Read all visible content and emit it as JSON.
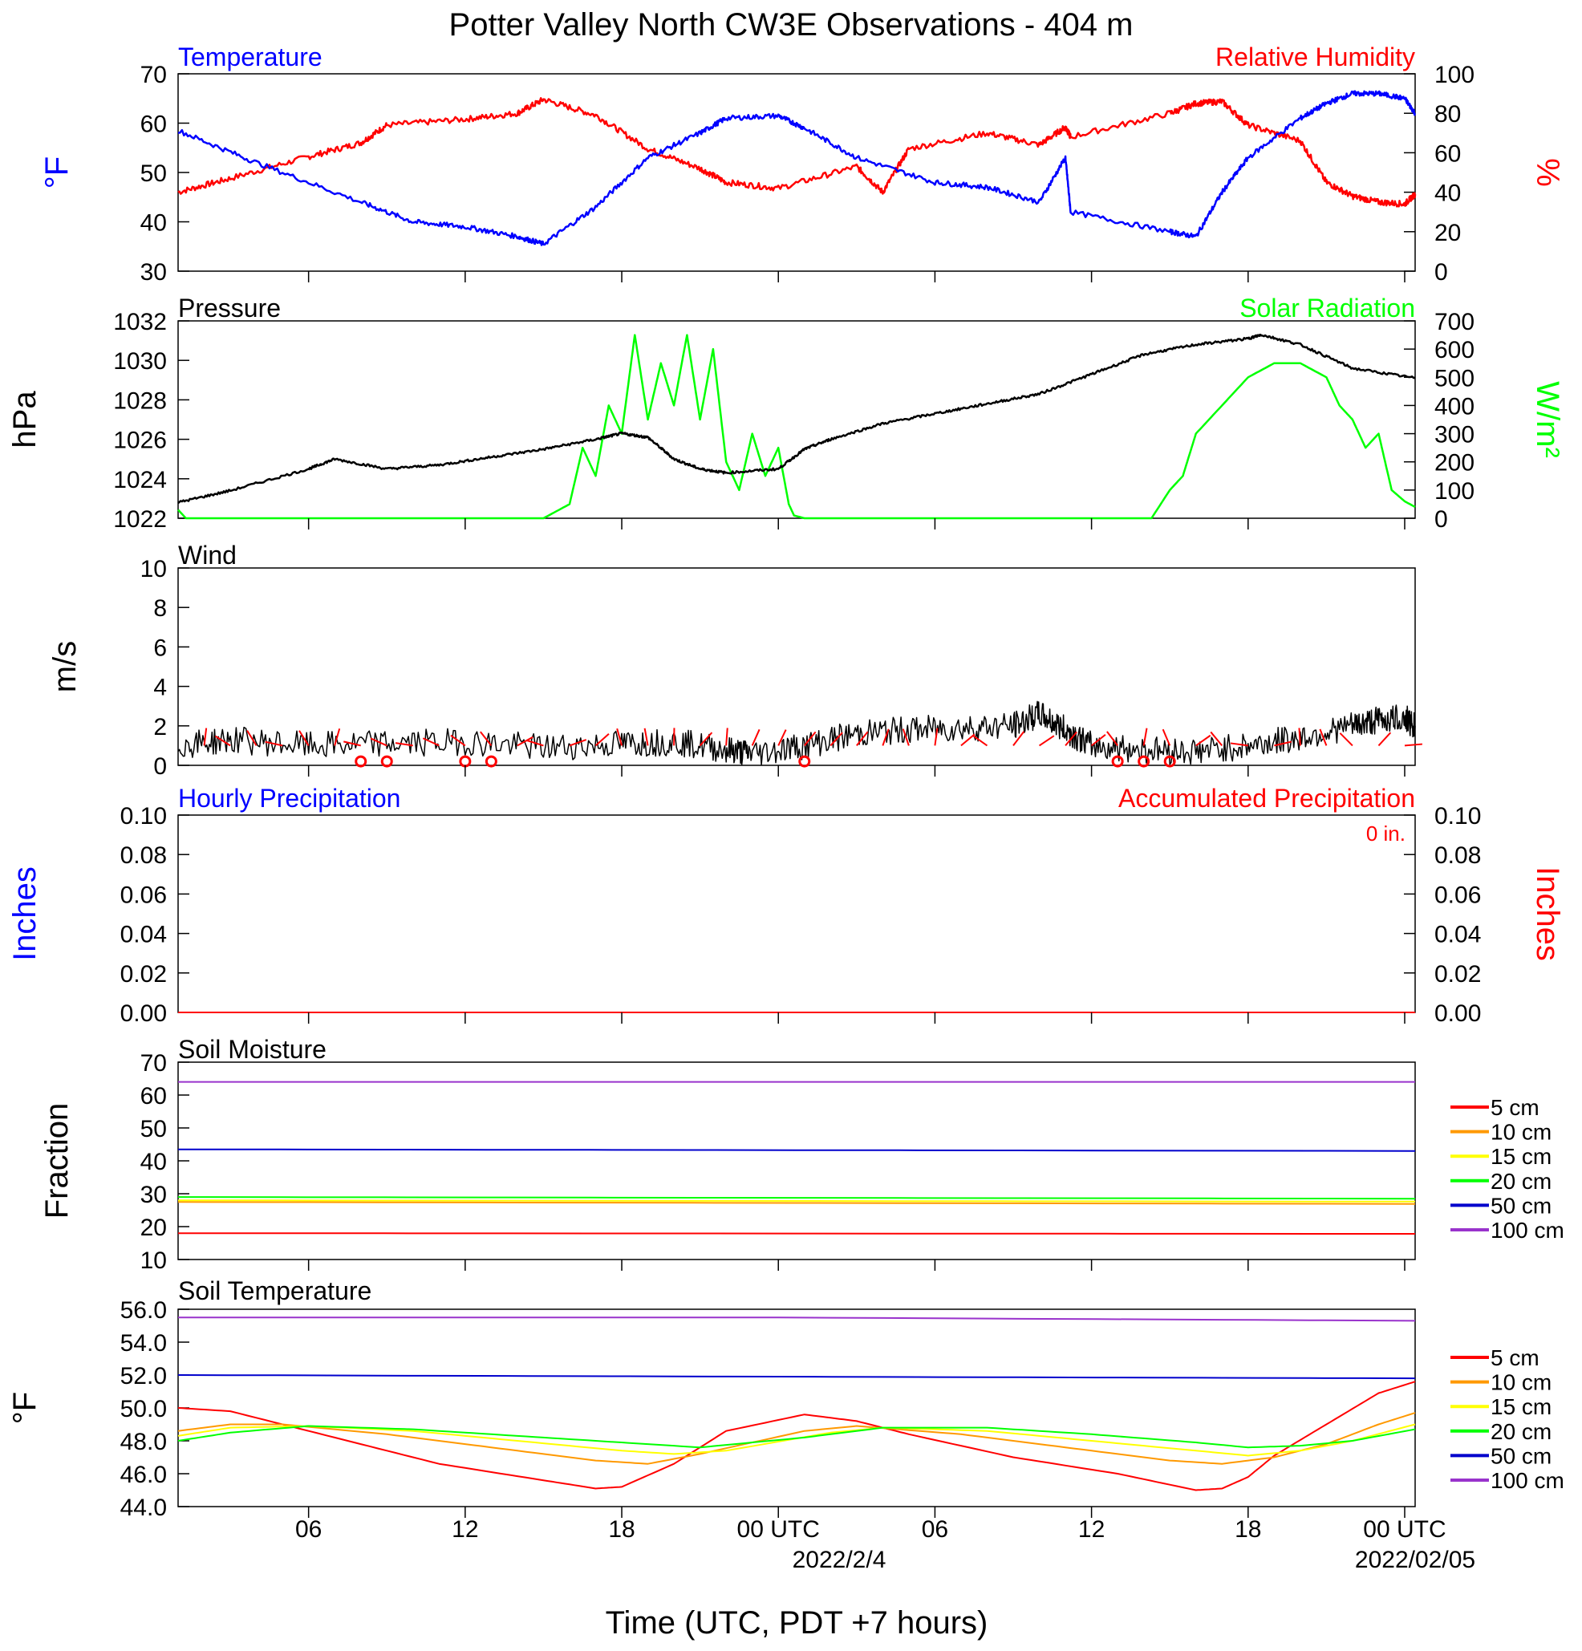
{
  "page": {
    "title": "Potter Valley North CW3E Observations - 404 m",
    "x_axis_title": "Time (UTC, PDT +7 hours)",
    "x_ticks": [
      "06",
      "12",
      "18",
      "00 UTC",
      "06",
      "12",
      "18",
      "00 UTC"
    ],
    "x_date_labels": [
      "2022/2/4",
      "2022/02/05"
    ],
    "precip_accum_note": "0 in."
  },
  "colors": {
    "temperature": "#0000ff",
    "humidity": "#ff0000",
    "pressure": "#000000",
    "solar": "#00ff00",
    "wind": "#000000",
    "barbs": "#ff0000",
    "depth_5": "#ff0000",
    "depth_10": "#ff9900",
    "depth_15": "#ffff00",
    "depth_20": "#00ff00",
    "depth_50": "#0000cc",
    "depth_100": "#9933cc"
  },
  "panels": {
    "temp_rh": {
      "left_title": "Temperature",
      "right_title": "Relative Humidity",
      "left_unit": "°F",
      "right_unit": "%",
      "left_ticks": [
        "70",
        "60",
        "50",
        "40",
        "30"
      ],
      "right_ticks": [
        "100",
        "80",
        "60",
        "40",
        "20",
        "0"
      ]
    },
    "pressure_solar": {
      "left_title": "Pressure",
      "right_title": "Solar Radiation",
      "left_unit": "hPa",
      "right_unit": "W/m²",
      "left_ticks": [
        "1032",
        "1030",
        "1028",
        "1026",
        "1024",
        "1022"
      ],
      "right_ticks": [
        "700",
        "600",
        "500",
        "400",
        "300",
        "200",
        "100",
        "0"
      ]
    },
    "wind": {
      "left_title": "Wind",
      "left_unit": "m/s",
      "left_ticks": [
        "10",
        "8",
        "6",
        "4",
        "2",
        "0"
      ]
    },
    "precip": {
      "left_title": "Hourly Precipitation",
      "right_title": "Accumulated Precipitation",
      "left_unit": "Inches",
      "right_unit": "Inches",
      "left_ticks": [
        "0.10",
        "0.08",
        "0.06",
        "0.04",
        "0.02",
        "0.00"
      ],
      "right_ticks": [
        "0.10",
        "0.08",
        "0.06",
        "0.04",
        "0.02",
        "0.00"
      ]
    },
    "soil_moisture": {
      "left_title": "Soil Moisture",
      "left_unit": "Fraction",
      "left_ticks": [
        "70",
        "60",
        "50",
        "40",
        "30",
        "20",
        "10"
      ],
      "legend": [
        "5 cm",
        "10 cm",
        "15 cm",
        "20 cm",
        "50 cm",
        "100 cm"
      ]
    },
    "soil_temp": {
      "left_title": "Soil Temperature",
      "left_unit": "°F",
      "left_ticks": [
        "56.0",
        "54.0",
        "52.0",
        "50.0",
        "48.0",
        "46.0",
        "44.0"
      ],
      "legend": [
        "5 cm",
        "10 cm",
        "15 cm",
        "20 cm",
        "50 cm",
        "100 cm"
      ]
    }
  },
  "chart_data": [
    {
      "type": "line",
      "title": "Temperature",
      "ylabel": "°F",
      "ylim": [
        30,
        70
      ],
      "y2label": "%",
      "y2lim": [
        0,
        100
      ],
      "xlabel": "Time (UTC, PDT +7 hours)",
      "x_hours": [
        1,
        6,
        10,
        14,
        15,
        17,
        20,
        22,
        24,
        26,
        28,
        32,
        34,
        34.8,
        35.2,
        39,
        40,
        41,
        42,
        44,
        45,
        46,
        48.4
      ],
      "series": [
        {
          "name": "Temperature",
          "axis": "left",
          "x": [
            1,
            4,
            8,
            10,
            12,
            14,
            15,
            17,
            19,
            21,
            22,
            24,
            25,
            27,
            30,
            32,
            34,
            35,
            35.2,
            39,
            40,
            41,
            42,
            44,
            45,
            46,
            47,
            48,
            48.4
          ],
          "values": [
            58.5,
            52,
            44,
            40,
            39,
            37,
            35.5,
            43,
            53,
            58,
            61,
            61.5,
            59,
            53,
            48,
            47,
            44,
            53,
            42,
            38,
            37,
            46,
            53,
            61,
            64,
            66,
            66,
            65,
            62
          ]
        },
        {
          "name": "Relative Humidity",
          "axis": "right",
          "x": [
            1,
            3,
            6,
            8,
            9,
            12,
            14,
            15,
            17,
            19,
            21,
            22,
            24,
            27,
            28,
            29,
            32,
            34,
            35,
            35.2,
            39,
            40,
            41,
            42,
            44,
            45,
            46,
            47,
            48,
            48.4
          ],
          "values": [
            40,
            47,
            58,
            65,
            74,
            77,
            80,
            87,
            79,
            62,
            52,
            45,
            42,
            53,
            40,
            62,
            70,
            64,
            73,
            68,
            80,
            85,
            86,
            74,
            66,
            45,
            38,
            35,
            34,
            39
          ]
        }
      ]
    },
    {
      "type": "line",
      "title": "Pressure",
      "ylabel": "hPa",
      "ylim": [
        1022,
        1032
      ],
      "y2label": "W/m²",
      "y2lim": [
        0,
        700
      ],
      "series": [
        {
          "name": "Pressure",
          "axis": "left",
          "x": [
            1,
            3,
            6,
            7,
            9,
            11,
            13,
            15,
            17,
            18,
            19,
            20,
            21,
            22,
            24,
            25,
            26,
            28,
            30,
            32,
            34,
            36,
            38,
            40,
            42,
            42.5,
            44,
            46,
            48.4
          ],
          "values": [
            1022.8,
            1023.4,
            1024.5,
            1025.0,
            1024.5,
            1024.7,
            1025.1,
            1025.5,
            1026.0,
            1026.3,
            1026.1,
            1025.0,
            1024.5,
            1024.3,
            1024.5,
            1025.5,
            1026.0,
            1026.8,
            1027.3,
            1027.8,
            1028.3,
            1029.3,
            1030.3,
            1030.8,
            1031.1,
            1031.3,
            1030.8,
            1029.6,
            1029.1
          ]
        },
        {
          "name": "Solar Radiation",
          "axis": "right",
          "x": [
            1,
            1.3,
            15,
            16,
            16.5,
            17,
            17.5,
            18,
            18.5,
            19,
            19.5,
            20,
            20.5,
            21,
            21.5,
            22,
            22.5,
            23,
            23.5,
            24,
            24.2,
            24.4,
            24.6,
            25,
            38.3,
            39,
            39.5,
            40,
            41,
            42,
            43,
            44,
            45,
            45.5,
            46,
            46.5,
            47,
            47.5,
            48,
            48.4
          ],
          "values": [
            30,
            0,
            0,
            50,
            250,
            150,
            400,
            300,
            650,
            350,
            550,
            400,
            650,
            350,
            600,
            200,
            100,
            300,
            150,
            250,
            150,
            50,
            10,
            0,
            0,
            100,
            150,
            300,
            400,
            500,
            550,
            550,
            500,
            400,
            350,
            250,
            300,
            100,
            60,
            40
          ]
        }
      ]
    },
    {
      "type": "line",
      "title": "Wind",
      "ylabel": "m/s",
      "ylim": [
        0,
        10
      ],
      "series": [
        {
          "name": "Wind",
          "x": [
            1,
            3,
            6,
            9,
            12,
            15,
            18,
            20,
            22,
            23,
            25,
            27,
            29,
            31,
            33,
            34,
            35,
            36,
            38,
            40,
            42,
            44,
            46,
            47,
            48,
            48.4
          ],
          "values": [
            1.0,
            1.3,
            1.0,
            1.1,
            1.2,
            0.9,
            1.1,
            1.2,
            0.8,
            0.6,
            1.0,
            1.6,
            1.8,
            1.9,
            2.0,
            2.6,
            1.8,
            1.0,
            0.8,
            0.7,
            1.0,
            1.4,
            2.0,
            2.3,
            2.4,
            2.0
          ]
        }
      ],
      "calm_markers_hours": [
        8,
        9,
        12,
        13,
        25,
        37,
        38,
        39
      ]
    },
    {
      "type": "line",
      "title": "Hourly Precipitation",
      "ylabel": "Inches",
      "ylim": [
        0,
        0.1
      ],
      "y2label": "Inches",
      "y2lim": [
        0,
        0.1
      ],
      "series": [
        {
          "name": "Hourly Precipitation",
          "x": [
            1,
            48.4
          ],
          "values": [
            0,
            0
          ]
        },
        {
          "name": "Accumulated Precipitation",
          "x": [
            1,
            48.4
          ],
          "values": [
            0,
            0
          ]
        }
      ]
    },
    {
      "type": "line",
      "title": "Soil Moisture",
      "ylabel": "Fraction",
      "ylim": [
        10,
        70
      ],
      "series": [
        {
          "name": "5 cm",
          "x": [
            1,
            48.4
          ],
          "values": [
            18.0,
            17.8
          ]
        },
        {
          "name": "10 cm",
          "x": [
            1,
            48.4
          ],
          "values": [
            27.5,
            26.9
          ]
        },
        {
          "name": "15 cm",
          "x": [
            1,
            48.4
          ],
          "values": [
            28.0,
            27.6
          ]
        },
        {
          "name": "20 cm",
          "x": [
            1,
            48.4
          ],
          "values": [
            29.0,
            28.5
          ]
        },
        {
          "name": "50 cm",
          "x": [
            1,
            48.4
          ],
          "values": [
            43.5,
            43.0
          ]
        },
        {
          "name": "100 cm",
          "x": [
            1,
            48.4
          ],
          "values": [
            64.0,
            64.0
          ]
        }
      ]
    },
    {
      "type": "line",
      "title": "Soil Temperature",
      "ylabel": "°F",
      "ylim": [
        44,
        56
      ],
      "series": [
        {
          "name": "5 cm",
          "x": [
            1,
            3,
            7,
            11,
            15,
            17,
            18,
            20,
            22,
            25,
            27,
            29,
            33,
            37,
            40,
            41,
            42,
            43,
            45,
            47,
            48.4
          ],
          "values": [
            50.0,
            49.8,
            48.2,
            46.6,
            45.6,
            45.1,
            45.2,
            46.6,
            48.6,
            49.6,
            49.2,
            48.4,
            47.0,
            46.0,
            45.0,
            45.1,
            45.8,
            47.1,
            49.0,
            50.9,
            51.6
          ]
        },
        {
          "name": "10 cm",
          "x": [
            1,
            3,
            5,
            9,
            13,
            17,
            19,
            21,
            25,
            27,
            31,
            35,
            39,
            41,
            43,
            45,
            47,
            48.4
          ],
          "values": [
            48.6,
            49.0,
            49.0,
            48.4,
            47.6,
            46.8,
            46.6,
            47.2,
            48.6,
            48.9,
            48.4,
            47.6,
            46.8,
            46.6,
            47.0,
            47.8,
            49.0,
            49.7
          ]
        },
        {
          "name": "15 cm",
          "x": [
            1,
            3,
            6,
            10,
            14,
            18,
            20,
            22,
            26,
            28,
            32,
            36,
            40,
            42,
            44,
            46,
            48.4
          ],
          "values": [
            48.3,
            48.8,
            48.9,
            48.6,
            48.0,
            47.4,
            47.2,
            47.4,
            48.5,
            48.8,
            48.6,
            48.0,
            47.4,
            47.1,
            47.4,
            48.0,
            49.0
          ]
        },
        {
          "name": "20 cm",
          "x": [
            1,
            3,
            6,
            10,
            14,
            18,
            21,
            25,
            28,
            32,
            36,
            40,
            42,
            44,
            46,
            48.4
          ],
          "values": [
            48.0,
            48.5,
            48.9,
            48.7,
            48.3,
            47.9,
            47.6,
            48.2,
            48.8,
            48.8,
            48.4,
            47.9,
            47.6,
            47.7,
            48.0,
            48.7
          ]
        },
        {
          "name": "50 cm",
          "x": [
            1,
            24,
            48.4
          ],
          "values": [
            52.0,
            51.9,
            51.8
          ]
        },
        {
          "name": "100 cm",
          "x": [
            1,
            24,
            48.4
          ],
          "values": [
            55.5,
            55.5,
            55.3
          ]
        }
      ]
    }
  ]
}
